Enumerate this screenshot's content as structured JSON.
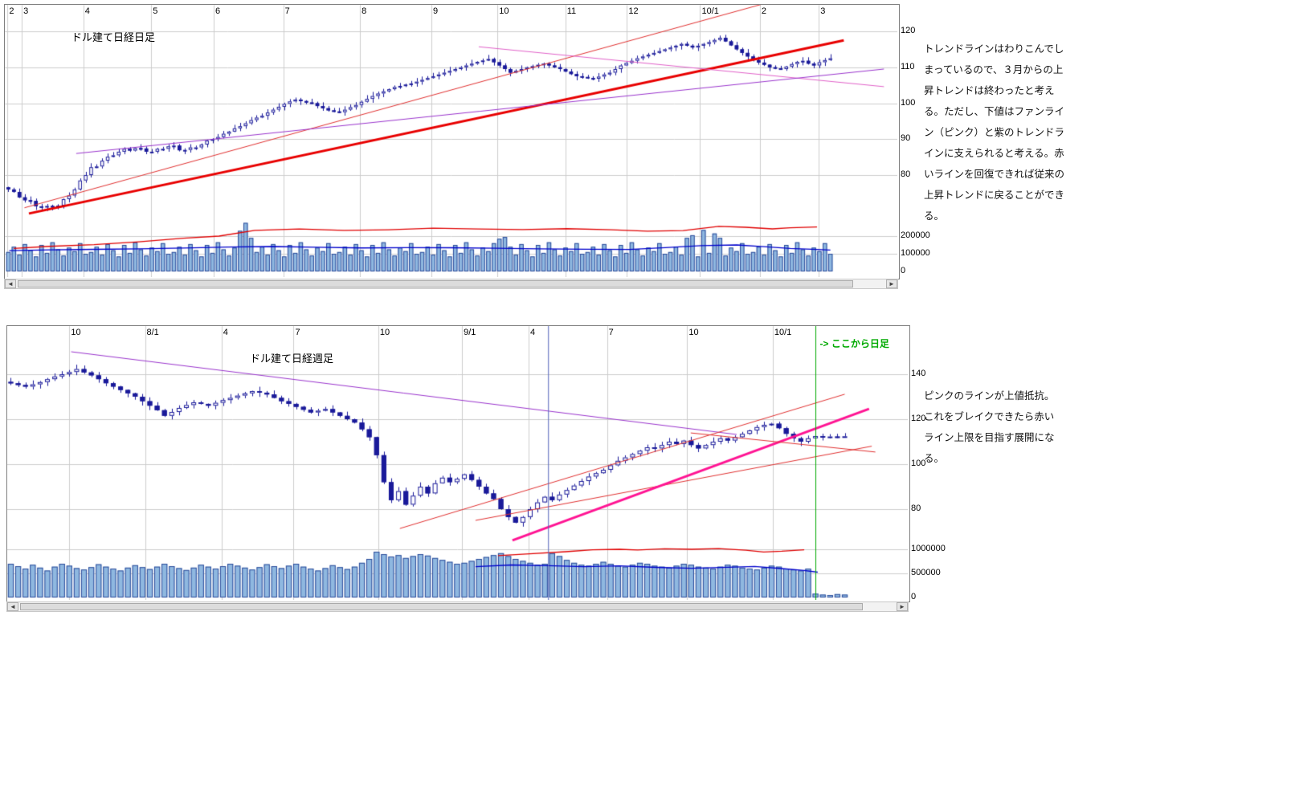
{
  "annotations": {
    "daily": "トレンドラインはわりこんでしまっているので、３月からの上昇トレンドは終わったと考える。ただし、下値はファンライン（ピンク）と紫のトレンドラインに支えられると考える。赤いラインを回復できれば従来の上昇トレンドに戻ることができる。",
    "weekly": "ピンクのラインが上値抵抗。これをブレイクできたら赤いライン上限を目指す展開になる。"
  },
  "ui": {
    "scroll_left": "◄",
    "scroll_right": "►"
  },
  "chart_data": [
    {
      "type": "candlestick",
      "title": "ドル建て日経日足",
      "legend_position": "none",
      "grid": true,
      "x_labels": [
        {
          "label": "2",
          "pos": 0.003
        },
        {
          "label": "3",
          "pos": 0.019
        },
        {
          "label": "4",
          "pos": 0.088
        },
        {
          "label": "5",
          "pos": 0.164
        },
        {
          "label": "6",
          "pos": 0.234
        },
        {
          "label": "7",
          "pos": 0.312
        },
        {
          "label": "8",
          "pos": 0.398
        },
        {
          "label": "9",
          "pos": 0.478
        },
        {
          "label": "10",
          "pos": 0.552
        },
        {
          "label": "11",
          "pos": 0.628
        },
        {
          "label": "12",
          "pos": 0.697
        },
        {
          "label": "10/1",
          "pos": 0.779
        },
        {
          "label": "2",
          "pos": 0.846
        },
        {
          "label": "3",
          "pos": 0.912
        }
      ],
      "y_ticks": [
        {
          "label": "120",
          "value": 120
        },
        {
          "label": "110",
          "value": 110
        },
        {
          "label": "100",
          "value": 100
        },
        {
          "label": "90",
          "value": 90
        },
        {
          "label": "80",
          "value": 80
        }
      ],
      "volume_ticks": [
        {
          "label": "200000",
          "value": 200000
        },
        {
          "label": "100000",
          "value": 100000
        },
        {
          "label": "0",
          "value": 0
        }
      ],
      "price_range": [
        67,
        126
      ],
      "volume_unit": 1000,
      "closes": [
        76.0,
        75.3,
        73.8,
        73.0,
        72.8,
        71.3,
        71.0,
        71.4,
        71.0,
        71.5,
        73.3,
        74.3,
        76.0,
        78.5,
        80.0,
        82.2,
        82.4,
        84.0,
        85.1,
        85.5,
        86.5,
        87.3,
        86.8,
        87.5,
        87.4,
        86.5,
        86.5,
        87.3,
        87.3,
        88.0,
        88.2,
        86.9,
        87.0,
        87.7,
        87.7,
        88.5,
        89.6,
        90.0,
        90.6,
        91.5,
        92.1,
        93.0,
        93.6,
        94.4,
        95.3,
        96.0,
        96.5,
        97.4,
        98.2,
        99.0,
        99.8,
        100.5,
        101.0,
        100.6,
        100.2,
        100.0,
        99.2,
        98.6,
        98.0,
        97.7,
        97.5,
        98.2,
        98.9,
        99.5,
        100.4,
        101.2,
        102.0,
        102.7,
        103.3,
        103.9,
        104.5,
        104.8,
        105.2,
        105.5,
        106.0,
        106.5,
        107.0,
        107.5,
        108.0,
        108.5,
        109.0,
        109.5,
        110.0,
        110.5,
        111.0,
        111.5,
        111.9,
        112.3,
        111.4,
        110.5,
        109.5,
        108.5,
        109.0,
        109.5,
        110.0,
        110.3,
        110.7,
        111.0,
        110.5,
        110.0,
        109.5,
        108.8,
        108.1,
        107.5,
        107.3,
        107.0,
        106.8,
        107.4,
        108.0,
        108.5,
        109.5,
        110.5,
        111.2,
        111.8,
        112.5,
        113.0,
        113.5,
        114.0,
        114.5,
        115.0,
        115.5,
        116.0,
        116.5,
        116.0,
        115.5,
        116.0,
        116.5,
        117.0,
        117.6,
        118.2,
        117.2,
        116.1,
        115.0,
        114.0,
        113.0,
        112.0,
        111.3,
        110.7,
        110.0,
        109.7,
        109.5,
        110.2,
        110.9,
        111.5,
        111.8,
        111.0,
        110.5,
        111.4,
        112.0,
        112.5
      ],
      "volumes": [
        110,
        140,
        95,
        155,
        120,
        85,
        150,
        105,
        165,
        125,
        90,
        135,
        115,
        160,
        100,
        110,
        140,
        95,
        155,
        120,
        85,
        150,
        105,
        165,
        125,
        90,
        135,
        115,
        160,
        100,
        110,
        140,
        95,
        155,
        120,
        85,
        150,
        105,
        165,
        125,
        90,
        135,
        230,
        275,
        190,
        110,
        140,
        95,
        155,
        120,
        85,
        150,
        105,
        165,
        125,
        90,
        135,
        115,
        160,
        100,
        110,
        140,
        95,
        155,
        120,
        85,
        150,
        105,
        165,
        125,
        90,
        135,
        115,
        160,
        100,
        110,
        140,
        95,
        155,
        120,
        85,
        150,
        105,
        165,
        125,
        90,
        135,
        115,
        160,
        185,
        195,
        140,
        95,
        155,
        120,
        85,
        150,
        105,
        165,
        125,
        90,
        135,
        115,
        160,
        100,
        110,
        140,
        95,
        155,
        120,
        85,
        150,
        105,
        165,
        125,
        90,
        135,
        115,
        160,
        100,
        110,
        140,
        95,
        190,
        205,
        85,
        235,
        105,
        215,
        190,
        90,
        135,
        115,
        160,
        100,
        110,
        140,
        95,
        155,
        120,
        85,
        150,
        105,
        165,
        125,
        90,
        135,
        115,
        160,
        100
      ],
      "overlays": {
        "volume_ma_blue": {
          "name": "volume-ma-blue",
          "color": "#0000cc",
          "points": [
            [
              0.005,
              118
            ],
            [
              0.05,
              122
            ],
            [
              0.1,
              125
            ],
            [
              0.15,
              128
            ],
            [
              0.2,
              132
            ],
            [
              0.25,
              138
            ],
            [
              0.3,
              141
            ],
            [
              0.35,
              137
            ],
            [
              0.4,
              133
            ],
            [
              0.45,
              135
            ],
            [
              0.5,
              134
            ],
            [
              0.55,
              131
            ],
            [
              0.6,
              128
            ],
            [
              0.65,
              126
            ],
            [
              0.7,
              124
            ],
            [
              0.74,
              135
            ],
            [
              0.78,
              146
            ],
            [
              0.82,
              150
            ],
            [
              0.85,
              140
            ],
            [
              0.88,
              130
            ],
            [
              0.91,
              124
            ],
            [
              0.925,
              121
            ]
          ]
        },
        "volume_ma_red": {
          "name": "volume-ma-red",
          "color": "#e00000",
          "points": [
            [
              0.01,
              130
            ],
            [
              0.05,
              142
            ],
            [
              0.1,
              152
            ],
            [
              0.15,
              168
            ],
            [
              0.2,
              188
            ],
            [
              0.24,
              200
            ],
            [
              0.28,
              232
            ],
            [
              0.33,
              240
            ],
            [
              0.38,
              232
            ],
            [
              0.43,
              236
            ],
            [
              0.48,
              245
            ],
            [
              0.53,
              240
            ],
            [
              0.58,
              237
            ],
            [
              0.63,
              242
            ],
            [
              0.68,
              236
            ],
            [
              0.72,
              228
            ],
            [
              0.76,
              231
            ],
            [
              0.8,
              255
            ],
            [
              0.83,
              250
            ],
            [
              0.86,
              241
            ],
            [
              0.88,
              247
            ],
            [
              0.91,
              252
            ]
          ]
        },
        "trend_lines": [
          {
            "name": "main-uptrend-thick-red",
            "color": "#e80000",
            "width": 3,
            "from": [
              0.027,
              69.3
            ],
            "to": [
              0.94,
              117.5
            ]
          },
          {
            "name": "fan-line-red-steep",
            "color": "#e03030",
            "width": 1,
            "from": [
              0.022,
              70.9
            ],
            "to": [
              0.855,
              128.0
            ]
          },
          {
            "name": "descending-pink",
            "color": "#e060c8",
            "width": 1,
            "from": [
              0.531,
              115.7
            ],
            "to": [
              0.985,
              104.6
            ]
          },
          {
            "name": "ascending-purple",
            "color": "#9933cc",
            "width": 1,
            "from": [
              0.08,
              86.0
            ],
            "to": [
              0.985,
              109.5
            ]
          }
        ]
      },
      "colors": {
        "up_fill": "#ffffff",
        "down_fill": "#1a1a9a",
        "outline": "#1a1a9a",
        "volume_fill": "#8fb8e0",
        "volume_outline": "#2a4a9a"
      }
    },
    {
      "type": "candlestick",
      "title": "ドル建て日経週足",
      "legend_position": "none",
      "grid": true,
      "x_labels": [
        {
          "label": "10",
          "pos": 0.069
        },
        {
          "label": "8/1",
          "pos": 0.153
        },
        {
          "label": "4",
          "pos": 0.238
        },
        {
          "label": "7",
          "pos": 0.318
        },
        {
          "label": "10",
          "pos": 0.412
        },
        {
          "label": "9/1",
          "pos": 0.505
        },
        {
          "label": "4",
          "pos": 0.579
        },
        {
          "label": "7",
          "pos": 0.666
        },
        {
          "label": "10",
          "pos": 0.755
        },
        {
          "label": "10/1",
          "pos": 0.85
        }
      ],
      "y_ticks": [
        {
          "label": "140",
          "value": 140
        },
        {
          "label": "120",
          "value": 120
        },
        {
          "label": "100",
          "value": 100
        },
        {
          "label": "80",
          "value": 80
        }
      ],
      "volume_ticks": [
        {
          "label": "1000000",
          "value": 1000000
        },
        {
          "label": "500000",
          "value": 500000
        },
        {
          "label": "0",
          "value": 0
        }
      ],
      "price_range": [
        66,
        160
      ],
      "volume_unit": 1000,
      "closes": [
        136.0,
        135.2,
        134.5,
        135.5,
        136.5,
        137.8,
        139.0,
        140.0,
        141.0,
        142.3,
        140.8,
        139.5,
        137.8,
        136.0,
        134.5,
        133.0,
        131.5,
        130.0,
        128.0,
        126.0,
        124.0,
        121.5,
        123.2,
        125.0,
        126.3,
        127.5,
        126.8,
        126.0,
        127.3,
        128.5,
        129.5,
        130.5,
        131.5,
        132.5,
        131.8,
        131.0,
        129.5,
        128.0,
        126.8,
        125.5,
        124.2,
        123.0,
        123.8,
        124.5,
        123.0,
        121.5,
        120.0,
        118.5,
        115.5,
        112.0,
        104.0,
        92.0,
        84.0,
        88.0,
        82.0,
        86.0,
        90.0,
        87.0,
        91.5,
        94.0,
        92.0,
        93.5,
        95.5,
        93.0,
        90.0,
        87.0,
        84.5,
        80.0,
        76.5,
        74.0,
        76.5,
        80.0,
        83.0,
        85.5,
        84.0,
        86.5,
        88.5,
        90.5,
        92.5,
        94.5,
        96.0,
        97.5,
        99.5,
        101.5,
        103.0,
        104.5,
        106.0,
        107.5,
        107.0,
        108.5,
        110.0,
        109.0,
        110.5,
        108.5,
        107.0,
        108.5,
        110.0,
        111.5,
        110.5,
        112.0,
        113.5,
        115.0,
        116.5,
        117.5,
        118.0,
        116.0,
        113.5,
        111.5,
        110.0,
        111.5,
        112.5,
        112.0,
        112.3,
        112.1,
        112.4
      ],
      "volumes": [
        700,
        650,
        600,
        680,
        620,
        560,
        640,
        700,
        660,
        610,
        580,
        630,
        690,
        640,
        600,
        560,
        620,
        670,
        630,
        590,
        640,
        700,
        650,
        610,
        570,
        620,
        680,
        640,
        600,
        650,
        700,
        660,
        620,
        580,
        630,
        690,
        650,
        610,
        660,
        700,
        640,
        600,
        560,
        610,
        670,
        630,
        590,
        640,
        720,
        800,
        950,
        900,
        850,
        880,
        820,
        860,
        900,
        870,
        820,
        780,
        740,
        700,
        720,
        760,
        800,
        840,
        880,
        920,
        860,
        800,
        760,
        720,
        680,
        700,
        920,
        860,
        780,
        720,
        680,
        660,
        700,
        740,
        700,
        660,
        640,
        680,
        720,
        700,
        660,
        640,
        620,
        660,
        700,
        680,
        640,
        620,
        600,
        640,
        680,
        660,
        620,
        600,
        580,
        620,
        660,
        640,
        600,
        580,
        560,
        600,
        80,
        60,
        50,
        70,
        60
      ],
      "overlays": {
        "volume_ma_blue": {
          "name": "volume-ma-blue",
          "color": "#0000cc",
          "points": [
            [
              0.52,
              640
            ],
            [
              0.56,
              675
            ],
            [
              0.6,
              660
            ],
            [
              0.64,
              640
            ],
            [
              0.68,
              655
            ],
            [
              0.72,
              625
            ],
            [
              0.76,
              605
            ],
            [
              0.8,
              628
            ],
            [
              0.83,
              645
            ],
            [
              0.86,
              600
            ],
            [
              0.885,
              560
            ],
            [
              0.9,
              525
            ]
          ]
        },
        "volume_ma_red": {
          "name": "volume-ma-red",
          "color": "#e00000",
          "points": [
            [
              0.545,
              870
            ],
            [
              0.58,
              905
            ],
            [
              0.62,
              950
            ],
            [
              0.65,
              990
            ],
            [
              0.68,
              1000
            ],
            [
              0.7,
              985
            ],
            [
              0.73,
              1010
            ],
            [
              0.76,
              1000
            ],
            [
              0.79,
              1015
            ],
            [
              0.82,
              980
            ],
            [
              0.84,
              945
            ],
            [
              0.86,
              960
            ],
            [
              0.885,
              990
            ]
          ]
        },
        "trend_lines": [
          {
            "name": "descending-purple",
            "color": "#9933cc",
            "width": 1,
            "from": [
              0.071,
              150.0
            ],
            "to": [
              0.81,
              113.2
            ]
          },
          {
            "name": "fan-line-red-upper",
            "color": "#e03030",
            "width": 1,
            "from": [
              0.436,
              71.4
            ],
            "to": [
              0.93,
              131.1
            ]
          },
          {
            "name": "fan-line-red-lower",
            "color": "#e03030",
            "width": 1,
            "from": [
              0.52,
              75.0
            ],
            "to": [
              0.96,
              108.0
            ]
          },
          {
            "name": "bold-pink-trendline",
            "color": "#ff1493",
            "width": 3,
            "from": [
              0.561,
              66.1
            ],
            "to": [
              0.957,
              124.6
            ]
          },
          {
            "name": "short-red-resistance",
            "color": "#e03030",
            "width": 1,
            "from": [
              0.759,
              113.9
            ],
            "to": [
              0.964,
              105.4
            ]
          },
          {
            "name": "divider-line",
            "color": "#5566bb",
            "width": 1,
            "vertical": 0.601
          }
        ]
      },
      "event_line": {
        "pos": 0.897,
        "color": "#00aa00",
        "label": "-> ここから日足"
      },
      "colors": {
        "up_fill": "#ffffff",
        "down_fill": "#1a1a9a",
        "outline": "#1a1a9a",
        "volume_fill": "#8fb8e0",
        "volume_outline": "#2a4a9a"
      }
    }
  ]
}
